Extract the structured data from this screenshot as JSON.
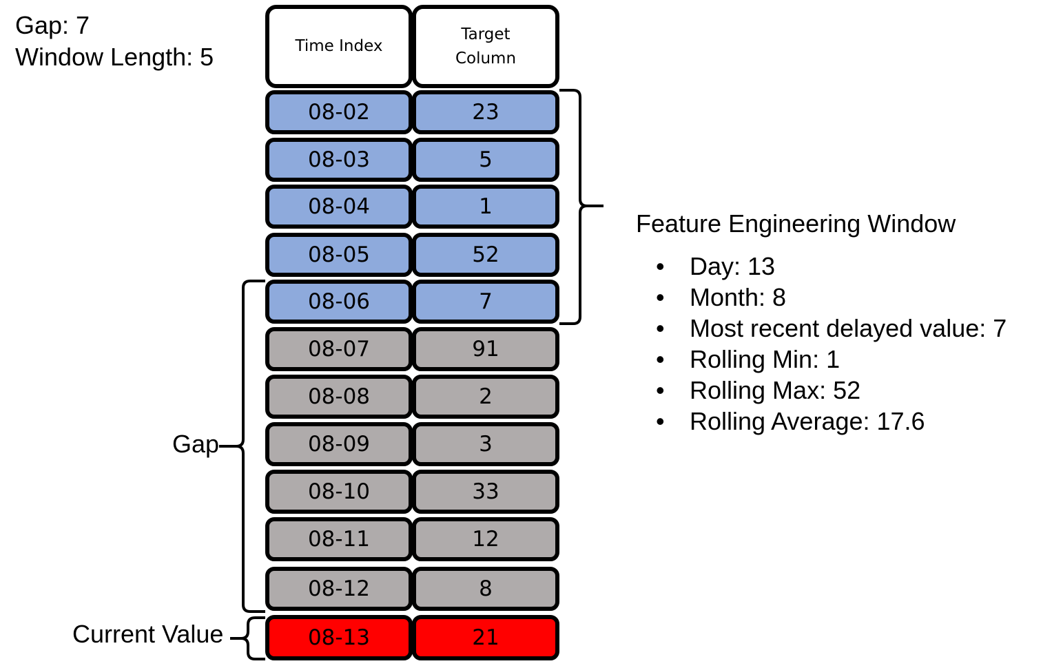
{
  "params": {
    "gap": "Gap: 7",
    "window_length": "Window Length: 5"
  },
  "table": {
    "headers": [
      "Time Index",
      "Target\nColumn"
    ],
    "rows": [
      {
        "time": "08-02",
        "value": "23",
        "group": "window"
      },
      {
        "time": "08-03",
        "value": "5",
        "group": "window"
      },
      {
        "time": "08-04",
        "value": "1",
        "group": "window"
      },
      {
        "time": "08-05",
        "value": "52",
        "group": "window"
      },
      {
        "time": "08-06",
        "value": "7",
        "group": "window"
      },
      {
        "time": "08-07",
        "value": "91",
        "group": "gap"
      },
      {
        "time": "08-08",
        "value": "2",
        "group": "gap"
      },
      {
        "time": "08-09",
        "value": "3",
        "group": "gap"
      },
      {
        "time": "08-10",
        "value": "33",
        "group": "gap"
      },
      {
        "time": "08-11",
        "value": "12",
        "group": "gap"
      },
      {
        "time": "08-12",
        "value": "8",
        "group": "gap"
      },
      {
        "time": "08-13",
        "value": "21",
        "group": "current"
      }
    ]
  },
  "colors": {
    "window": "#8eaadc",
    "gap": "#afabab",
    "current": "#ff0000"
  },
  "labels": {
    "gap": "Gap",
    "current_value": "Current Value"
  },
  "feature_window": {
    "title": "Feature Engineering Window",
    "bullet": "•",
    "items": [
      "Day: 13",
      "Month: 8",
      "Most recent delayed value: 7",
      "Rolling Min: 1",
      "Rolling Max: 52",
      "Rolling Average: 17.6"
    ]
  }
}
